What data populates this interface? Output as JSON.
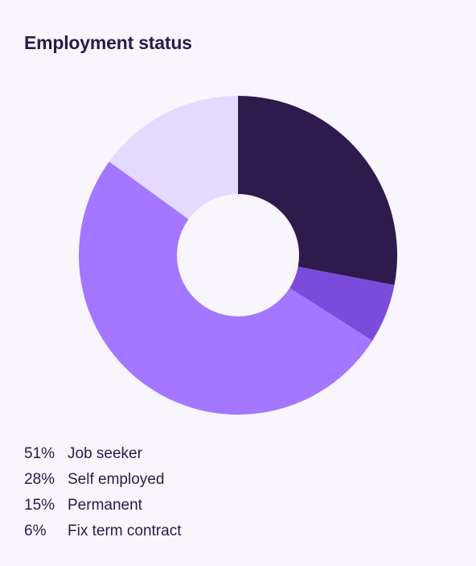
{
  "chart_data": {
    "type": "pie",
    "title": "Employment status",
    "donut": true,
    "slices": [
      {
        "label": "Job seeker",
        "value": 51,
        "display": "51%",
        "color": "#a377ff"
      },
      {
        "label": "Self employed",
        "value": 28,
        "display": "28%",
        "color": "#2e1a4d"
      },
      {
        "label": "Permanent",
        "value": 15,
        "display": "15%",
        "color": "#e4daff"
      },
      {
        "label": "Fix term contract",
        "value": 6,
        "display": "6%",
        "color": "#7b4cdb"
      }
    ]
  }
}
